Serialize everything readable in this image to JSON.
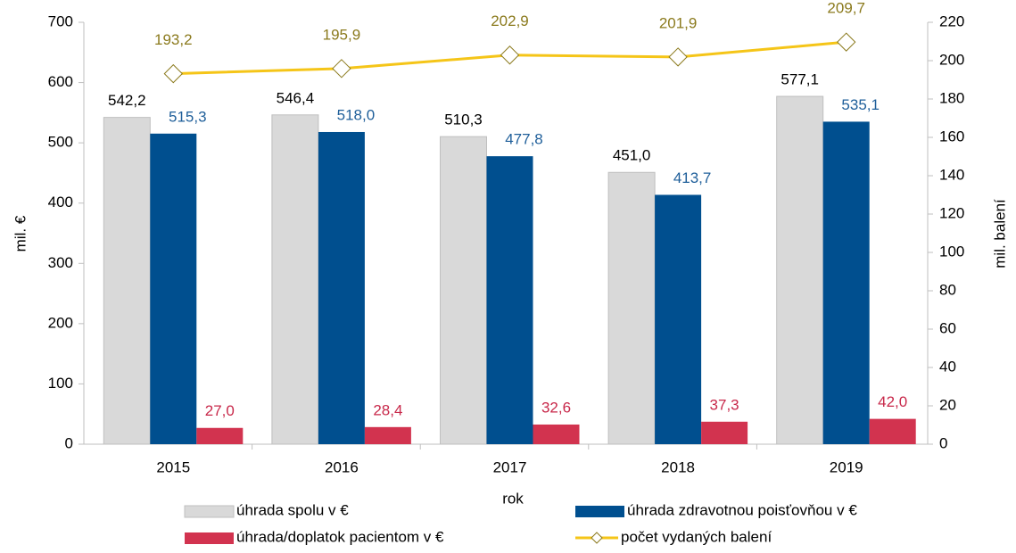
{
  "chart_data": {
    "type": "bar_line",
    "categories": [
      "2015",
      "2016",
      "2017",
      "2018",
      "2019"
    ],
    "x_label": "rok",
    "y_label": "mil. €",
    "y2_label": "mil. balení",
    "ylim": [
      0,
      700
    ],
    "yticks": [
      0,
      100,
      200,
      300,
      400,
      500,
      600,
      700
    ],
    "y2lim": [
      0,
      220
    ],
    "y2ticks": [
      0,
      20,
      40,
      60,
      80,
      100,
      120,
      140,
      160,
      180,
      200,
      220
    ],
    "legend": "bottom",
    "series": [
      {
        "name": "úhrada spolu v €",
        "type": "bar",
        "color": "#d9d9d9",
        "label_color": "#000000",
        "values": [
          542.2,
          546.4,
          510.3,
          451.0,
          577.1
        ],
        "value_labels": [
          "542,2",
          "546,4",
          "510,3",
          "451,0",
          "577,1"
        ]
      },
      {
        "name": "úhrada zdravotnou poisťovňou v €",
        "type": "bar",
        "color": "#004f8f",
        "label_color": "#1f5f9a",
        "values": [
          515.3,
          518.0,
          477.8,
          413.7,
          535.1
        ],
        "value_labels": [
          "515,3",
          "518,0",
          "477,8",
          "413,7",
          "535,1"
        ]
      },
      {
        "name": "úhrada/doplatok pacientom v €",
        "type": "bar",
        "color": "#d2334f",
        "label_color": "#c8284a",
        "values": [
          27.0,
          28.4,
          32.6,
          37.3,
          42.0
        ],
        "value_labels": [
          "27,0",
          "28,4",
          "32,6",
          "37,3",
          "42,0"
        ]
      },
      {
        "name": "počet vydaných balení",
        "type": "line",
        "axis": "y2",
        "color": "#f5c518",
        "label_color": "#8b7a1d",
        "values": [
          193.2,
          195.9,
          202.9,
          201.9,
          209.7
        ],
        "value_labels": [
          "193,2",
          "195,9",
          "202,9",
          "201,9",
          "209,7"
        ]
      }
    ]
  }
}
